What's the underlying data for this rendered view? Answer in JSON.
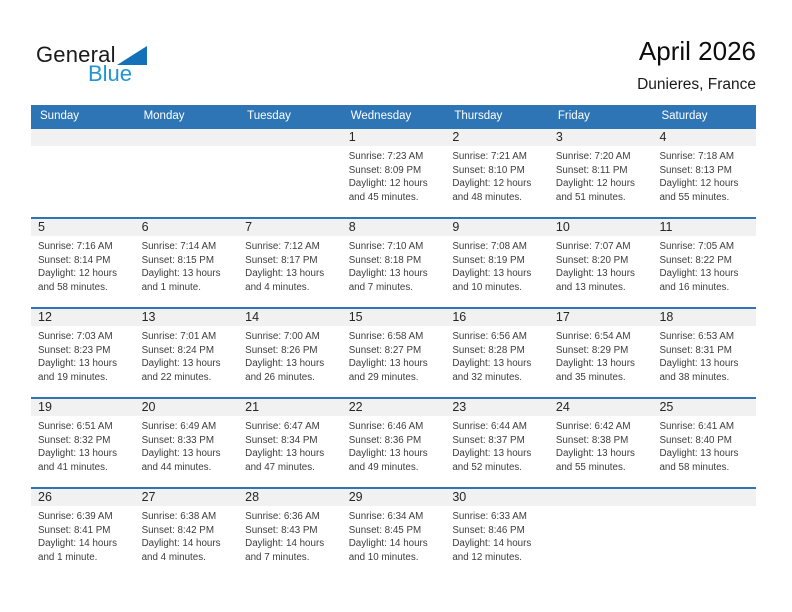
{
  "logo": {
    "line1": "General",
    "line2": "Blue"
  },
  "title": {
    "month_year": "April 2026",
    "location": "Dunieres, France"
  },
  "colors": {
    "header_blue": "#2E75B6",
    "band_gray": "#F1F1F1",
    "logo_triangle_blue": "#1470B8",
    "logo_text_blue": "#2095D3"
  },
  "calendar": {
    "weekday_headers": [
      "Sunday",
      "Monday",
      "Tuesday",
      "Wednesday",
      "Thursday",
      "Friday",
      "Saturday"
    ],
    "weeks": [
      {
        "days": [
          {
            "day": "",
            "sunrise": "",
            "sunset": "",
            "daylight": ""
          },
          {
            "day": "",
            "sunrise": "",
            "sunset": "",
            "daylight": ""
          },
          {
            "day": "",
            "sunrise": "",
            "sunset": "",
            "daylight": ""
          },
          {
            "day": "1",
            "sunrise": "Sunrise: 7:23 AM",
            "sunset": "Sunset: 8:09 PM",
            "daylight": "Daylight: 12 hours and 45 minutes."
          },
          {
            "day": "2",
            "sunrise": "Sunrise: 7:21 AM",
            "sunset": "Sunset: 8:10 PM",
            "daylight": "Daylight: 12 hours and 48 minutes."
          },
          {
            "day": "3",
            "sunrise": "Sunrise: 7:20 AM",
            "sunset": "Sunset: 8:11 PM",
            "daylight": "Daylight: 12 hours and 51 minutes."
          },
          {
            "day": "4",
            "sunrise": "Sunrise: 7:18 AM",
            "sunset": "Sunset: 8:13 PM",
            "daylight": "Daylight: 12 hours and 55 minutes."
          }
        ]
      },
      {
        "days": [
          {
            "day": "5",
            "sunrise": "Sunrise: 7:16 AM",
            "sunset": "Sunset: 8:14 PM",
            "daylight": "Daylight: 12 hours and 58 minutes."
          },
          {
            "day": "6",
            "sunrise": "Sunrise: 7:14 AM",
            "sunset": "Sunset: 8:15 PM",
            "daylight": "Daylight: 13 hours and 1 minute."
          },
          {
            "day": "7",
            "sunrise": "Sunrise: 7:12 AM",
            "sunset": "Sunset: 8:17 PM",
            "daylight": "Daylight: 13 hours and 4 minutes."
          },
          {
            "day": "8",
            "sunrise": "Sunrise: 7:10 AM",
            "sunset": "Sunset: 8:18 PM",
            "daylight": "Daylight: 13 hours and 7 minutes."
          },
          {
            "day": "9",
            "sunrise": "Sunrise: 7:08 AM",
            "sunset": "Sunset: 8:19 PM",
            "daylight": "Daylight: 13 hours and 10 minutes."
          },
          {
            "day": "10",
            "sunrise": "Sunrise: 7:07 AM",
            "sunset": "Sunset: 8:20 PM",
            "daylight": "Daylight: 13 hours and 13 minutes."
          },
          {
            "day": "11",
            "sunrise": "Sunrise: 7:05 AM",
            "sunset": "Sunset: 8:22 PM",
            "daylight": "Daylight: 13 hours and 16 minutes."
          }
        ]
      },
      {
        "days": [
          {
            "day": "12",
            "sunrise": "Sunrise: 7:03 AM",
            "sunset": "Sunset: 8:23 PM",
            "daylight": "Daylight: 13 hours and 19 minutes."
          },
          {
            "day": "13",
            "sunrise": "Sunrise: 7:01 AM",
            "sunset": "Sunset: 8:24 PM",
            "daylight": "Daylight: 13 hours and 22 minutes."
          },
          {
            "day": "14",
            "sunrise": "Sunrise: 7:00 AM",
            "sunset": "Sunset: 8:26 PM",
            "daylight": "Daylight: 13 hours and 26 minutes."
          },
          {
            "day": "15",
            "sunrise": "Sunrise: 6:58 AM",
            "sunset": "Sunset: 8:27 PM",
            "daylight": "Daylight: 13 hours and 29 minutes."
          },
          {
            "day": "16",
            "sunrise": "Sunrise: 6:56 AM",
            "sunset": "Sunset: 8:28 PM",
            "daylight": "Daylight: 13 hours and 32 minutes."
          },
          {
            "day": "17",
            "sunrise": "Sunrise: 6:54 AM",
            "sunset": "Sunset: 8:29 PM",
            "daylight": "Daylight: 13 hours and 35 minutes."
          },
          {
            "day": "18",
            "sunrise": "Sunrise: 6:53 AM",
            "sunset": "Sunset: 8:31 PM",
            "daylight": "Daylight: 13 hours and 38 minutes."
          }
        ]
      },
      {
        "days": [
          {
            "day": "19",
            "sunrise": "Sunrise: 6:51 AM",
            "sunset": "Sunset: 8:32 PM",
            "daylight": "Daylight: 13 hours and 41 minutes."
          },
          {
            "day": "20",
            "sunrise": "Sunrise: 6:49 AM",
            "sunset": "Sunset: 8:33 PM",
            "daylight": "Daylight: 13 hours and 44 minutes."
          },
          {
            "day": "21",
            "sunrise": "Sunrise: 6:47 AM",
            "sunset": "Sunset: 8:34 PM",
            "daylight": "Daylight: 13 hours and 47 minutes."
          },
          {
            "day": "22",
            "sunrise": "Sunrise: 6:46 AM",
            "sunset": "Sunset: 8:36 PM",
            "daylight": "Daylight: 13 hours and 49 minutes."
          },
          {
            "day": "23",
            "sunrise": "Sunrise: 6:44 AM",
            "sunset": "Sunset: 8:37 PM",
            "daylight": "Daylight: 13 hours and 52 minutes."
          },
          {
            "day": "24",
            "sunrise": "Sunrise: 6:42 AM",
            "sunset": "Sunset: 8:38 PM",
            "daylight": "Daylight: 13 hours and 55 minutes."
          },
          {
            "day": "25",
            "sunrise": "Sunrise: 6:41 AM",
            "sunset": "Sunset: 8:40 PM",
            "daylight": "Daylight: 13 hours and 58 minutes."
          }
        ]
      },
      {
        "days": [
          {
            "day": "26",
            "sunrise": "Sunrise: 6:39 AM",
            "sunset": "Sunset: 8:41 PM",
            "daylight": "Daylight: 14 hours and 1 minute."
          },
          {
            "day": "27",
            "sunrise": "Sunrise: 6:38 AM",
            "sunset": "Sunset: 8:42 PM",
            "daylight": "Daylight: 14 hours and 4 minutes."
          },
          {
            "day": "28",
            "sunrise": "Sunrise: 6:36 AM",
            "sunset": "Sunset: 8:43 PM",
            "daylight": "Daylight: 14 hours and 7 minutes."
          },
          {
            "day": "29",
            "sunrise": "Sunrise: 6:34 AM",
            "sunset": "Sunset: 8:45 PM",
            "daylight": "Daylight: 14 hours and 10 minutes."
          },
          {
            "day": "30",
            "sunrise": "Sunrise: 6:33 AM",
            "sunset": "Sunset: 8:46 PM",
            "daylight": "Daylight: 14 hours and 12 minutes."
          },
          {
            "day": "",
            "sunrise": "",
            "sunset": "",
            "daylight": ""
          },
          {
            "day": "",
            "sunrise": "",
            "sunset": "",
            "daylight": ""
          }
        ]
      }
    ]
  }
}
